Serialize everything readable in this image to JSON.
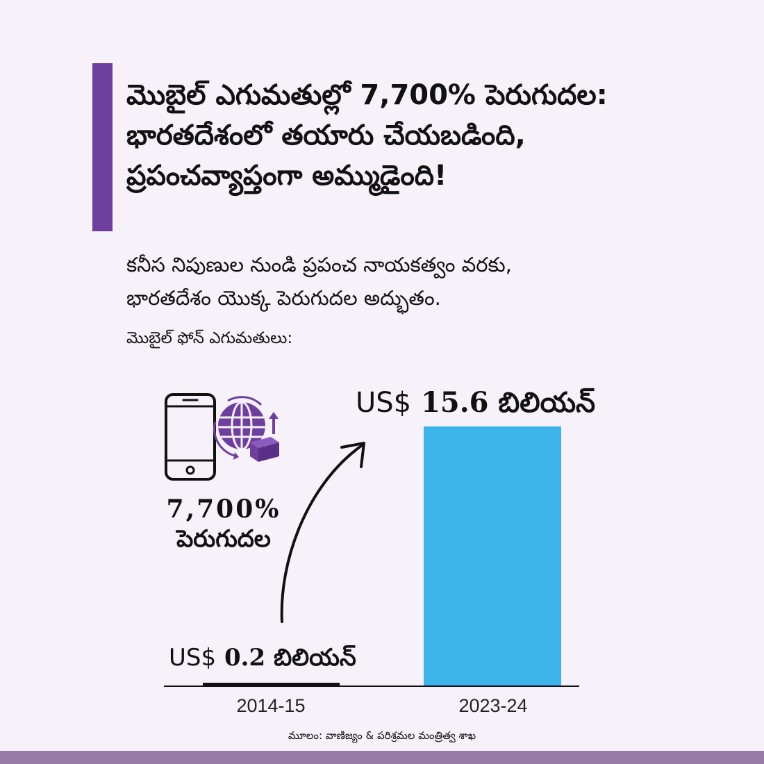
{
  "header": {
    "title_lines": [
      "మొబైల్ ఎగుమతుల్లో 7,700% పెరుగుదల:",
      "భారతదేశంలో తయారు చేయబడింది,",
      "ప్రపంచవ్యాప్తంగా అమ్ముడైంది!"
    ],
    "subtitle_lines": [
      "కనీస నిపుణుల నుండి ప్రపంచ నాయకత్వం వరకు,",
      "భారతదేశం యొక్క పెరుగుదల అద్భుతం."
    ],
    "section_label": "మొబైల్ ఫోన్ ఎగుమతులు:"
  },
  "highlight": {
    "value": "7,700%",
    "label": "పెరుగుదల",
    "icons": [
      "smartphone-icon",
      "globe-export-icon"
    ]
  },
  "chart_data": {
    "type": "bar",
    "categories": [
      "2014-15",
      "2023-24"
    ],
    "values": [
      0.2,
      15.6
    ],
    "value_labels": [
      {
        "currency": "US$",
        "amount": "0.2",
        "unit": "బిలియన్"
      },
      {
        "currency": "US$",
        "amount": "15.6",
        "unit": "బిలియన్"
      }
    ],
    "ylim": [
      0,
      15.6
    ],
    "grid": false,
    "bar_colors": [
      "#111111",
      "#3cb4ea"
    ]
  },
  "colors": {
    "accent": "#6f3fa0",
    "background": "#f7f1f9",
    "footer": "#9a7aa6",
    "bar_highlight": "#3cb4ea"
  },
  "footer": {
    "source": "మూలం: వాణిజ్యం & పరిశ్రమల మంత్రిత్వ శాఖ"
  }
}
